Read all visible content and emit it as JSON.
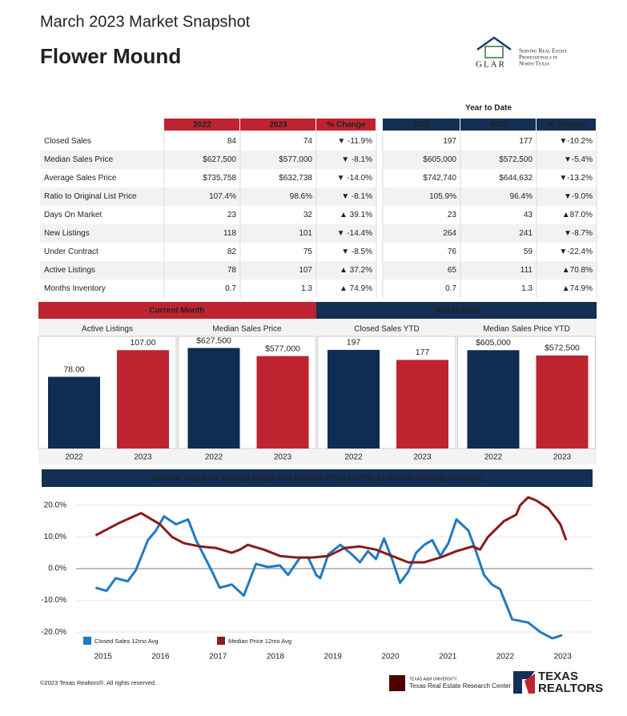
{
  "header": {
    "title": "March 2023 Market Snapshot",
    "city": "Flower Mound",
    "logo": {
      "name": "GLAR",
      "tagline": [
        "Serving Real Estate",
        "Professionals in",
        "North Texas"
      ]
    }
  },
  "table": {
    "ytd_label": "Year to Date",
    "columns": [
      "2022",
      "2023",
      "% Change",
      "2022",
      "2023",
      "% Change"
    ],
    "rows": [
      [
        "Closed Sales",
        "84",
        "74",
        "▼ -11.9%",
        "197",
        "177",
        "▼-10.2%"
      ],
      [
        "Median Sales Price",
        "$627,500",
        "$577,000",
        "▼ -8.1%",
        "$605,000",
        "$572,500",
        "▼-5.4%"
      ],
      [
        "Average Sales Price",
        "$735,758",
        "$632,738",
        "▼ -14.0%",
        "$742,740",
        "$644,632",
        "▼-13.2%"
      ],
      [
        "Ratio to Original List Price",
        "107.4%",
        "98.6%",
        "▼ -8.1%",
        "105.9%",
        "96.4%",
        "▼-9.0%"
      ],
      [
        "Days On Market",
        "23",
        "32",
        "▲ 39.1%",
        "23",
        "43",
        "▲87.0%"
      ],
      [
        "New Listings",
        "118",
        "101",
        "▼ -14.4%",
        "264",
        "241",
        "▼-8.7%"
      ],
      [
        "Under Contract",
        "82",
        "75",
        "▼ -8.5%",
        "76",
        "59",
        "▼-22.4%"
      ],
      [
        "Active Listings",
        "78",
        "107",
        "▲ 37.2%",
        "65",
        "111",
        "▲70.8%"
      ],
      [
        "Months Inventory",
        "0.7",
        "1.3",
        "▲ 74.9%",
        "0.7",
        "1.3",
        "▲74.9%"
      ]
    ]
  },
  "sections": [
    "Current Month",
    "Year to Date"
  ],
  "chart_data": [
    {
      "type": "bar",
      "title": "Active Listings",
      "categories": [
        "2022",
        "2023"
      ],
      "values": [
        78,
        107
      ],
      "value_labels": [
        "78.00",
        "107.00"
      ],
      "colors": [
        "#0f2c52",
        "#be2330"
      ],
      "ylim": [
        0,
        122
      ]
    },
    {
      "type": "bar",
      "title": "Median Sales Price",
      "categories": [
        "2022",
        "2023"
      ],
      "values": [
        627500,
        577000
      ],
      "value_labels": [
        "$627,500",
        "$577,000"
      ],
      "colors": [
        "#0f2c52",
        "#be2330"
      ],
      "ylim": [
        0,
        700000
      ]
    },
    {
      "type": "bar",
      "title": "Closed Sales YTD",
      "categories": [
        "2022",
        "2023"
      ],
      "values": [
        197,
        177
      ],
      "value_labels": [
        "197",
        "177"
      ],
      "colors": [
        "#0f2c52",
        "#be2330"
      ],
      "ylim": [
        0,
        224
      ]
    },
    {
      "type": "bar",
      "title": "Median Sales Price YTD",
      "categories": [
        "2022",
        "2023"
      ],
      "values": [
        605000,
        572500
      ],
      "value_labels": [
        "$605,000",
        "$572,500"
      ],
      "colors": [
        "#0f2c52",
        "#be2330"
      ],
      "ylim": [
        0,
        690000
      ]
    },
    {
      "type": "line",
      "title": "Growth Trend for Closed Sales and Median Price (YoY% 12-Month Moving Average)",
      "series": [
        {
          "name": "Closed Sales 12mo Avg",
          "color": "#1f7ac3",
          "x": [
            2014.87,
            2015.06,
            2015.22,
            2015.43,
            2015.57,
            2015.78,
            2015.92,
            2016.06,
            2016.27,
            2016.48,
            2016.62,
            2016.9,
            2017.03,
            2017.24,
            2017.45,
            2017.66,
            2017.87,
            2018.08,
            2018.22,
            2018.43,
            2018.57,
            2018.71,
            2018.78,
            2018.92,
            2019.13,
            2019.33,
            2019.47,
            2019.61,
            2019.75,
            2019.89,
            2020.03,
            2020.17,
            2020.31,
            2020.45,
            2020.59,
            2020.73,
            2020.87,
            2021.01,
            2021.15,
            2021.36,
            2021.49,
            2021.63,
            2021.77,
            2021.91,
            2022.12,
            2022.4,
            2022.61,
            2022.82,
            2022.99
          ],
          "values": [
            -6,
            -7,
            -3,
            -4,
            -0.5,
            9,
            12,
            16.5,
            14,
            15.5,
            9,
            -1,
            -6,
            -5,
            -8.5,
            1.5,
            0.5,
            1,
            -2,
            3.5,
            3.5,
            -2,
            -3,
            4.5,
            7.5,
            4.5,
            2,
            5.5,
            3,
            9.5,
            3,
            -4.5,
            -1,
            5,
            7.5,
            9,
            4,
            8,
            15.5,
            12,
            5.5,
            -2,
            -5,
            -6.5,
            -16,
            -17,
            -20,
            -22,
            -21
          ]
        },
        {
          "name": "Median Price 12mo Avg",
          "color": "#8b1a1a",
          "x": [
            2014.87,
            2015.29,
            2015.66,
            2015.99,
            2016.2,
            2016.41,
            2016.69,
            2016.97,
            2017.24,
            2017.38,
            2017.52,
            2017.8,
            2018.08,
            2018.36,
            2018.64,
            2018.92,
            2019.2,
            2019.47,
            2019.75,
            2020.03,
            2020.31,
            2020.59,
            2020.87,
            2021.15,
            2021.43,
            2021.56,
            2021.7,
            2021.98,
            2022.19,
            2022.26,
            2022.4,
            2022.54,
            2022.75,
            2022.96,
            2023.06
          ],
          "values": [
            10.5,
            14.5,
            17.5,
            14,
            10,
            8,
            7,
            6.5,
            5,
            6,
            7.5,
            6,
            4,
            3.5,
            3.5,
            4,
            6.5,
            7,
            6,
            4,
            2,
            2,
            3.5,
            5.5,
            7,
            6,
            10,
            15,
            17,
            20,
            22.5,
            21.5,
            19,
            14,
            9
          ]
        }
      ],
      "xlim": [
        2014.53,
        2023.52
      ],
      "xticks": [
        2015,
        2016,
        2017,
        2018,
        2019,
        2020,
        2021,
        2022,
        2023
      ],
      "ylim": [
        -24,
        24
      ],
      "yticks": [
        {
          "value": 20,
          "label": "20.0%"
        },
        {
          "value": 10,
          "label": "10.0%"
        },
        {
          "value": 0,
          "label": "0.0%"
        },
        {
          "value": -10,
          "label": "-10.0%"
        },
        {
          "value": -20,
          "label": "-20.0%"
        }
      ],
      "grid": true
    }
  ],
  "footer": {
    "copyright": "©2023 Texas Realtors®. All rights reserved.",
    "tamu": [
      "TEXAS A&M UNIVERSITY",
      "Texas Real Estate Research Center"
    ],
    "realtors": [
      "TEXAS",
      "REALTORS"
    ]
  }
}
